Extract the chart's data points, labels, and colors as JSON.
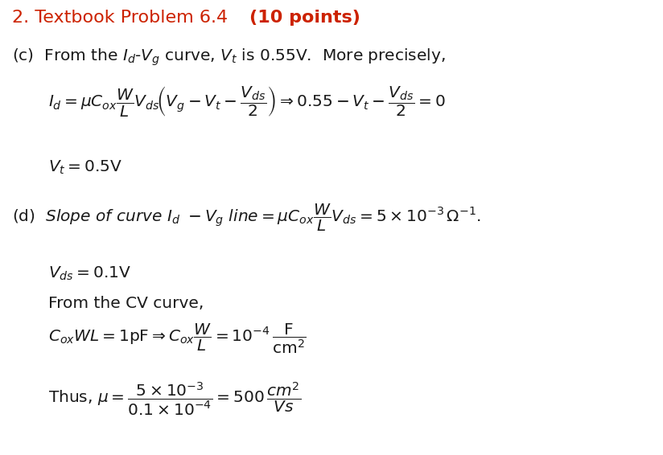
{
  "bg_color": "#ffffff",
  "title_color": "#cc2200",
  "body_color": "#1a1a1a",
  "figsize": [
    8.24,
    5.66
  ],
  "dpi": 100,
  "title_normal": "2. Textbook Problem 6.4 ",
  "title_bold": "(10 points)",
  "line_c_intro": "(c)  From the $I_d$-$V_g$ curve, $V_t$ is 0.55V.  More precisely,",
  "line_c_eq": "$I_d = \\mu C_{ox}\\dfrac{W}{L}V_{ds}\\!\\left(V_g - V_t - \\dfrac{V_{ds}}{2}\\right)\\Rightarrow 0.55 - V_t - \\dfrac{V_{ds}}{2} = 0$",
  "line_c_vt": "$V_t = 0.5\\mathrm{V}$",
  "line_d_slope": "(d)  $\\mathit{Slope\\ of\\ curve\\ }I_d\\mathit{\\ -}V_g\\mathit{\\ line} = \\mu C_{ox}\\dfrac{W}{L}V_{ds} = 5\\times10^{-3}\\,\\Omega^{-1}.$",
  "line_d_vds": "$V_{ds} = 0.1\\mathrm{V}$",
  "line_d_cv": "From the CV curve,",
  "line_d_cox": "$C_{ox}WL = 1\\mathrm{pF} \\Rightarrow C_{ox}\\dfrac{W}{L} = 10^{-4}\\,\\dfrac{\\mathrm{F}}{\\mathrm{cm}^2}$",
  "line_d_mu": "Thus, $\\mu = \\dfrac{5\\times10^{-3}}{0.1\\times10^{-4}} = 500\\,\\dfrac{\\mathit{cm}^2}{\\mathit{Vs}}$"
}
